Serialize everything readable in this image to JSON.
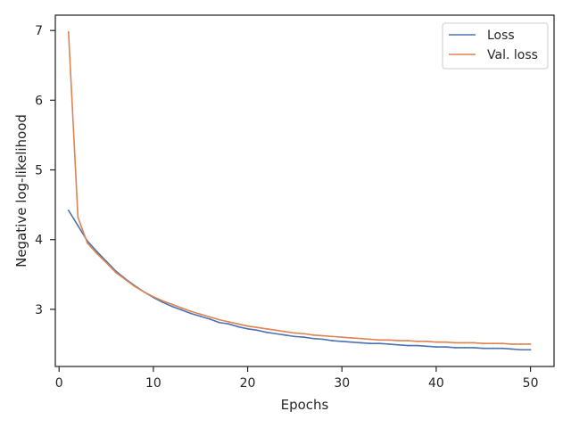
{
  "chart_data": {
    "type": "line",
    "title": "",
    "xlabel": "Epochs",
    "ylabel": "Negative log-likelihood",
    "xlim": [
      -0.4,
      52.5
    ],
    "ylim": [
      2.18,
      7.22
    ],
    "xticks": [
      0,
      10,
      20,
      30,
      40,
      50
    ],
    "yticks": [
      3,
      4,
      5,
      6,
      7
    ],
    "grid": false,
    "legend_position": "top-right",
    "x": [
      1,
      2,
      3,
      4,
      5,
      6,
      7,
      8,
      9,
      10,
      11,
      12,
      13,
      14,
      15,
      16,
      17,
      18,
      19,
      20,
      21,
      22,
      23,
      24,
      25,
      26,
      27,
      28,
      29,
      30,
      31,
      32,
      33,
      34,
      35,
      36,
      37,
      38,
      39,
      40,
      41,
      42,
      43,
      44,
      45,
      46,
      47,
      48,
      49,
      50
    ],
    "series": [
      {
        "name": "Loss",
        "color": "#4c72b0",
        "values": [
          4.42,
          4.2,
          3.98,
          3.83,
          3.69,
          3.55,
          3.44,
          3.34,
          3.25,
          3.17,
          3.1,
          3.04,
          2.99,
          2.94,
          2.9,
          2.86,
          2.81,
          2.79,
          2.75,
          2.72,
          2.7,
          2.67,
          2.65,
          2.63,
          2.61,
          2.6,
          2.58,
          2.57,
          2.55,
          2.54,
          2.53,
          2.52,
          2.51,
          2.51,
          2.5,
          2.49,
          2.48,
          2.48,
          2.47,
          2.46,
          2.46,
          2.45,
          2.45,
          2.45,
          2.44,
          2.44,
          2.44,
          2.43,
          2.42,
          2.42
        ]
      },
      {
        "name": "Val. loss",
        "color": "#dd8452",
        "values": [
          6.98,
          4.32,
          3.95,
          3.8,
          3.67,
          3.53,
          3.43,
          3.33,
          3.25,
          3.18,
          3.12,
          3.07,
          3.02,
          2.97,
          2.93,
          2.89,
          2.85,
          2.82,
          2.79,
          2.76,
          2.74,
          2.72,
          2.7,
          2.68,
          2.66,
          2.65,
          2.63,
          2.62,
          2.61,
          2.6,
          2.59,
          2.58,
          2.57,
          2.56,
          2.56,
          2.55,
          2.55,
          2.54,
          2.54,
          2.53,
          2.53,
          2.52,
          2.52,
          2.52,
          2.51,
          2.51,
          2.51,
          2.5,
          2.5,
          2.5
        ]
      }
    ]
  }
}
